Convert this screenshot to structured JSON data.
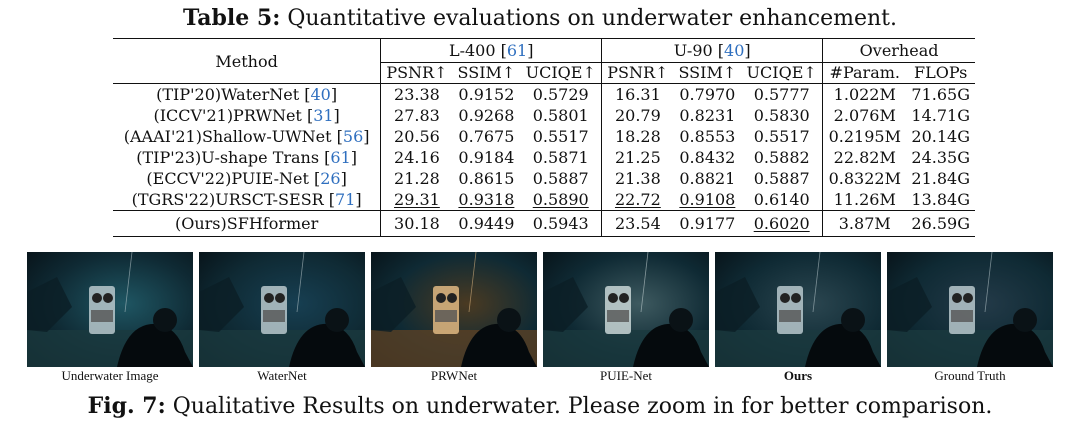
{
  "table_caption": {
    "label": "Table 5:",
    "text": "Quantitative evaluations on underwater enhancement."
  },
  "table": {
    "method_header": "Method",
    "group_l400": {
      "name": "L-400 [",
      "ref": "61",
      "close": "]"
    },
    "group_u90": {
      "name": "U-90 [",
      "ref": "40",
      "close": "]"
    },
    "group_overhead": "Overhead",
    "subheaders": [
      "PSNR↑",
      "SSIM↑",
      "UCIQE↑",
      "PSNR↑",
      "SSIM↑",
      "UCIQE↑",
      "#Param.",
      "FLOPs"
    ],
    "rows": [
      {
        "method": "(TIP'20)WaterNet [",
        "ref": "40",
        "close": "]",
        "values": [
          "23.38",
          "0.9152",
          "0.5729",
          "16.31",
          "0.7970",
          "0.5777",
          "1.022M",
          "71.65G"
        ]
      },
      {
        "method": "(ICCV'21)PRWNet [",
        "ref": "31",
        "close": "]",
        "values": [
          "27.83",
          "0.9268",
          "0.5801",
          "20.79",
          "0.8231",
          "0.5830",
          "2.076M",
          "14.71G"
        ]
      },
      {
        "method": "(AAAI'21)Shallow-UWNet [",
        "ref": "56",
        "close": "]",
        "values": [
          "20.56",
          "0.7675",
          "0.5517",
          "18.28",
          "0.8553",
          "0.5517",
          "0.2195M",
          "20.14G"
        ]
      },
      {
        "method": "(TIP'23)U-shape Trans [",
        "ref": "61",
        "close": "]",
        "values": [
          "24.16",
          "0.9184",
          "0.5871",
          "21.25",
          "0.8432",
          "0.5882",
          "22.82M",
          "24.35G"
        ]
      },
      {
        "method": "(ECCV'22)PUIE-Net [",
        "ref": "26",
        "close": "]",
        "values": [
          "21.28",
          "0.8615",
          "0.5887",
          "21.38",
          "0.8821",
          "0.5887",
          "0.8322M",
          "21.84G"
        ]
      },
      {
        "method": "(TGRS'22)URSCT-SESR [",
        "ref": "71",
        "close": "]",
        "values": [
          "29.31",
          "0.9318",
          "0.5890",
          "22.72",
          "0.9108",
          "0.6140",
          "11.26M",
          "13.84G"
        ]
      }
    ],
    "ours": {
      "method": "(Ours)SFHformer",
      "values": [
        "30.18",
        "0.9449",
        "0.5943",
        "23.54",
        "0.9177",
        "0.6020",
        "3.87M",
        "26.59G"
      ]
    }
  },
  "figure": {
    "panel_labels": [
      "Underwater Image",
      "WaterNet",
      "PRWNet",
      "PUIE-Net",
      "Ours",
      "Ground Truth"
    ],
    "panel_tints": [
      "#1f5663",
      "#173f52",
      "#4a3a22",
      "#3e5a60",
      "#2b4650",
      "#233a48"
    ]
  },
  "figure_caption": {
    "label": "Fig. 7:",
    "text": "Qualitative Results on underwater. Please zoom in for better comparison."
  }
}
